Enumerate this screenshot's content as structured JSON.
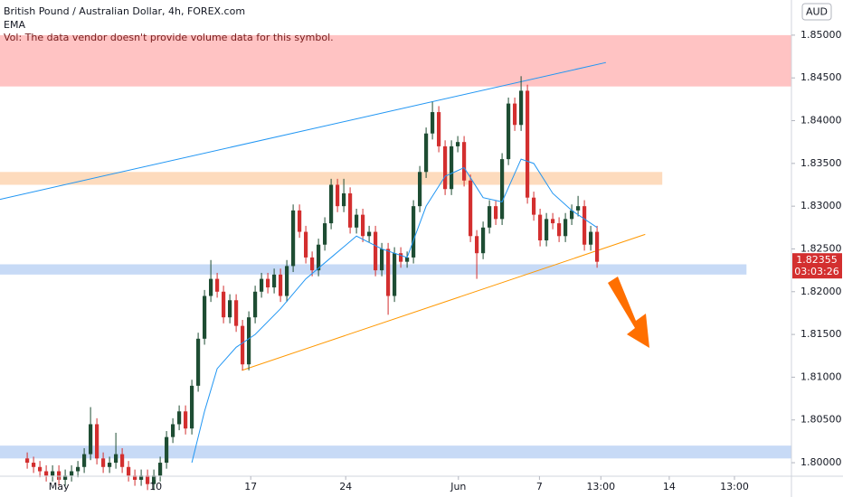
{
  "chart_data": {
    "type": "candlestick",
    "title": "British Pound / Australian Dollar, 4h, FOREX.com",
    "indicator": "EMA",
    "notice": "Vol: The data vendor doesn't provide volume data for this symbol.",
    "currency": "AUD",
    "up_color": "#1e4d33",
    "down_color": "#d32f2f",
    "x": [
      0,
      1,
      2,
      3,
      4,
      5,
      6,
      7,
      8,
      9,
      10,
      11,
      12,
      13,
      14,
      15,
      16,
      17,
      18,
      19,
      20,
      21,
      22,
      23,
      24,
      25,
      26,
      27,
      28,
      29,
      30,
      31,
      32,
      33,
      34,
      35,
      36,
      37,
      38,
      39,
      40,
      41,
      42,
      43,
      44,
      45,
      46,
      47,
      48,
      49,
      50,
      51,
      52,
      53,
      54,
      55,
      56,
      57,
      58,
      59,
      60,
      61,
      62,
      63,
      64,
      65,
      66,
      67,
      68,
      69,
      70,
      71,
      72,
      73,
      74,
      75,
      76,
      77,
      78,
      79,
      80,
      81,
      82,
      83,
      84,
      85,
      86,
      87,
      88,
      89,
      90
    ],
    "ohlc": [
      [
        1.8005,
        1.8012,
        1.7993,
        1.8
      ],
      [
        1.8,
        1.8007,
        1.7988,
        1.7995
      ],
      [
        1.7995,
        1.8002,
        1.7983,
        1.799
      ],
      [
        1.799,
        1.7997,
        1.7978,
        1.7985
      ],
      [
        1.7985,
        1.7997,
        1.7978,
        1.799
      ],
      [
        1.799,
        1.7997,
        1.7973,
        1.798
      ],
      [
        1.798,
        1.7992,
        1.7973,
        1.7985
      ],
      [
        1.7985,
        1.7997,
        1.7978,
        1.799
      ],
      [
        1.799,
        1.8002,
        1.7983,
        1.7995
      ],
      [
        1.7995,
        1.8017,
        1.7988,
        1.801
      ],
      [
        1.801,
        1.8065,
        1.8003,
        1.8045
      ],
      [
        1.8045,
        1.8052,
        1.7998,
        1.8005
      ],
      [
        1.8005,
        1.8012,
        1.7988,
        1.7995
      ],
      [
        1.7995,
        1.8007,
        1.7988,
        1.8
      ],
      [
        1.8,
        1.8035,
        1.7993,
        1.801
      ],
      [
        1.801,
        1.8017,
        1.7988,
        1.7995
      ],
      [
        1.7995,
        1.8002,
        1.7978,
        1.7985
      ],
      [
        1.7985,
        1.7992,
        1.7973,
        1.798
      ],
      [
        1.798,
        1.7992,
        1.7973,
        1.7985
      ],
      [
        1.7985,
        1.7992,
        1.7968,
        1.7975
      ],
      [
        1.7975,
        1.7992,
        1.7968,
        1.7985
      ],
      [
        1.7985,
        1.8007,
        1.7978,
        1.8
      ],
      [
        1.8,
        1.8037,
        1.7993,
        1.803
      ],
      [
        1.803,
        1.8052,
        1.8023,
        1.8045
      ],
      [
        1.8045,
        1.8067,
        1.8038,
        1.806
      ],
      [
        1.806,
        1.8067,
        1.8033,
        1.804
      ],
      [
        1.804,
        1.8097,
        1.8033,
        1.809
      ],
      [
        1.809,
        1.8152,
        1.8083,
        1.8145
      ],
      [
        1.8145,
        1.8202,
        1.8138,
        1.8195
      ],
      [
        1.8195,
        1.8237,
        1.8188,
        1.8215
      ],
      [
        1.8215,
        1.8222,
        1.8193,
        1.82
      ],
      [
        1.82,
        1.8207,
        1.8163,
        1.817
      ],
      [
        1.817,
        1.8197,
        1.8163,
        1.819
      ],
      [
        1.819,
        1.8197,
        1.8153,
        1.816
      ],
      [
        1.816,
        1.8167,
        1.8108,
        1.8115
      ],
      [
        1.8115,
        1.8177,
        1.8108,
        1.817
      ],
      [
        1.817,
        1.8207,
        1.8163,
        1.82
      ],
      [
        1.82,
        1.8222,
        1.8193,
        1.8215
      ],
      [
        1.8215,
        1.8222,
        1.8198,
        1.8205
      ],
      [
        1.8205,
        1.8227,
        1.8198,
        1.822
      ],
      [
        1.822,
        1.8227,
        1.8188,
        1.8195
      ],
      [
        1.8195,
        1.8237,
        1.8188,
        1.823
      ],
      [
        1.823,
        1.8302,
        1.8223,
        1.8295
      ],
      [
        1.8295,
        1.8302,
        1.8263,
        1.827
      ],
      [
        1.827,
        1.8277,
        1.8233,
        1.824
      ],
      [
        1.824,
        1.8247,
        1.8218,
        1.8225
      ],
      [
        1.8225,
        1.8262,
        1.8218,
        1.8255
      ],
      [
        1.8255,
        1.8287,
        1.8248,
        1.828
      ],
      [
        1.828,
        1.8332,
        1.8273,
        1.8325
      ],
      [
        1.8325,
        1.8332,
        1.8293,
        1.83
      ],
      [
        1.83,
        1.8332,
        1.8293,
        1.8315
      ],
      [
        1.8315,
        1.8322,
        1.8268,
        1.8275
      ],
      [
        1.8275,
        1.8297,
        1.8268,
        1.829
      ],
      [
        1.829,
        1.8297,
        1.8258,
        1.8265
      ],
      [
        1.8265,
        1.8277,
        1.8258,
        1.827
      ],
      [
        1.827,
        1.8277,
        1.8218,
        1.8225
      ],
      [
        1.8225,
        1.8257,
        1.8218,
        1.825
      ],
      [
        1.825,
        1.8257,
        1.8173,
        1.8195
      ],
      [
        1.8195,
        1.8252,
        1.8188,
        1.8245
      ],
      [
        1.8245,
        1.8252,
        1.8228,
        1.8235
      ],
      [
        1.8235,
        1.8247,
        1.8228,
        1.824
      ],
      [
        1.824,
        1.8307,
        1.8233,
        1.83
      ],
      [
        1.83,
        1.8347,
        1.8293,
        1.834
      ],
      [
        1.834,
        1.8392,
        1.8333,
        1.8385
      ],
      [
        1.8385,
        1.8422,
        1.8378,
        1.841
      ],
      [
        1.841,
        1.8417,
        1.8363,
        1.837
      ],
      [
        1.837,
        1.8377,
        1.8313,
        1.832
      ],
      [
        1.832,
        1.8377,
        1.8313,
        1.837
      ],
      [
        1.837,
        1.8382,
        1.8363,
        1.8375
      ],
      [
        1.8375,
        1.8382,
        1.8323,
        1.833
      ],
      [
        1.833,
        1.8337,
        1.8258,
        1.8265
      ],
      [
        1.8265,
        1.8272,
        1.8215,
        1.8245
      ],
      [
        1.8245,
        1.8282,
        1.8238,
        1.8275
      ],
      [
        1.8275,
        1.8307,
        1.8268,
        1.83
      ],
      [
        1.83,
        1.8307,
        1.8278,
        1.8285
      ],
      [
        1.8285,
        1.8362,
        1.8278,
        1.8355
      ],
      [
        1.8355,
        1.8427,
        1.8348,
        1.842
      ],
      [
        1.842,
        1.8427,
        1.8388,
        1.8395
      ],
      [
        1.8395,
        1.8452,
        1.8388,
        1.8435
      ],
      [
        1.8435,
        1.8442,
        1.8303,
        1.831
      ],
      [
        1.831,
        1.8317,
        1.8283,
        1.829
      ],
      [
        1.829,
        1.8297,
        1.8253,
        1.826
      ],
      [
        1.826,
        1.8292,
        1.8253,
        1.8285
      ],
      [
        1.8285,
        1.8292,
        1.8273,
        1.828
      ],
      [
        1.828,
        1.8287,
        1.8258,
        1.8265
      ],
      [
        1.8265,
        1.8292,
        1.8258,
        1.8285
      ],
      [
        1.8285,
        1.8302,
        1.8278,
        1.8295
      ],
      [
        1.8295,
        1.8312,
        1.8288,
        1.83
      ],
      [
        1.83,
        1.8307,
        1.8248,
        1.8255
      ],
      [
        1.8255,
        1.8277,
        1.8248,
        1.827
      ],
      [
        1.827,
        1.8277,
        1.8228,
        1.8235
      ]
    ],
    "ema": {
      "color": "#2196f3",
      "x": [
        26,
        28,
        30,
        33,
        36,
        40,
        44,
        48,
        52,
        56,
        60,
        63,
        66,
        69,
        72,
        75,
        78,
        80,
        83,
        86,
        89,
        90
      ],
      "values": [
        1.8,
        1.806,
        1.811,
        1.8135,
        1.815,
        1.818,
        1.8215,
        1.824,
        1.8265,
        1.825,
        1.824,
        1.83,
        1.8335,
        1.8345,
        1.831,
        1.8305,
        1.8355,
        1.835,
        1.8315,
        1.8295,
        1.828,
        1.8275
      ]
    },
    "zones": [
      {
        "low": 1.844,
        "high": 1.85,
        "x": [
          -4.3,
          120.7
        ],
        "color": "#ffb8b8"
      },
      {
        "low": 1.8325,
        "high": 1.834,
        "x": [
          -4.3,
          100.3
        ],
        "color": "#fdd5b1"
      },
      {
        "low": 1.822,
        "high": 1.8232,
        "x": [
          -4.3,
          113.6
        ],
        "color": "#bdd3f5"
      },
      {
        "low": 1.8005,
        "high": 1.802,
        "x": [
          -4.3,
          120.7
        ],
        "color": "#bdd3f5"
      }
    ],
    "trendlines": [
      {
        "x": [
          -4.3,
          91.4
        ],
        "y": [
          1.8308,
          1.8468
        ],
        "color": "#2196f3"
      },
      {
        "x": [
          33.9,
          97.6
        ],
        "y": [
          1.8108,
          1.8267
        ],
        "color": "#ff9800"
      }
    ],
    "last_price": 1.82355,
    "countdown": "03:03:26",
    "xlim": [
      -4.3,
      120.7
    ],
    "ylim": [
      1.79842,
      1.85411
    ],
    "yticks": [
      {
        "value": 1.8,
        "label": "1.80000"
      },
      {
        "value": 1.805,
        "label": "1.80500"
      },
      {
        "value": 1.81,
        "label": "1.81000"
      },
      {
        "value": 1.815,
        "label": "1.81500"
      },
      {
        "value": 1.82,
        "label": "1.82000"
      },
      {
        "value": 1.825,
        "label": "1.82500"
      },
      {
        "value": 1.83,
        "label": "1.83000"
      },
      {
        "value": 1.835,
        "label": "1.83500"
      },
      {
        "value": 1.84,
        "label": "1.84000"
      },
      {
        "value": 1.845,
        "label": "1.84500"
      },
      {
        "value": 1.85,
        "label": "1.85000"
      }
    ],
    "xticks": [
      {
        "value": 5,
        "label": "May"
      },
      {
        "value": 20.3,
        "label": "10"
      },
      {
        "value": 35.3,
        "label": "17"
      },
      {
        "value": 50.3,
        "label": "24"
      },
      {
        "value": 68.1,
        "label": "Jun"
      },
      {
        "value": 80.9,
        "label": "7"
      },
      {
        "value": 90.6,
        "label": "13:00"
      },
      {
        "value": 101.4,
        "label": "14"
      },
      {
        "value": 111.7,
        "label": "13:00"
      }
    ]
  }
}
